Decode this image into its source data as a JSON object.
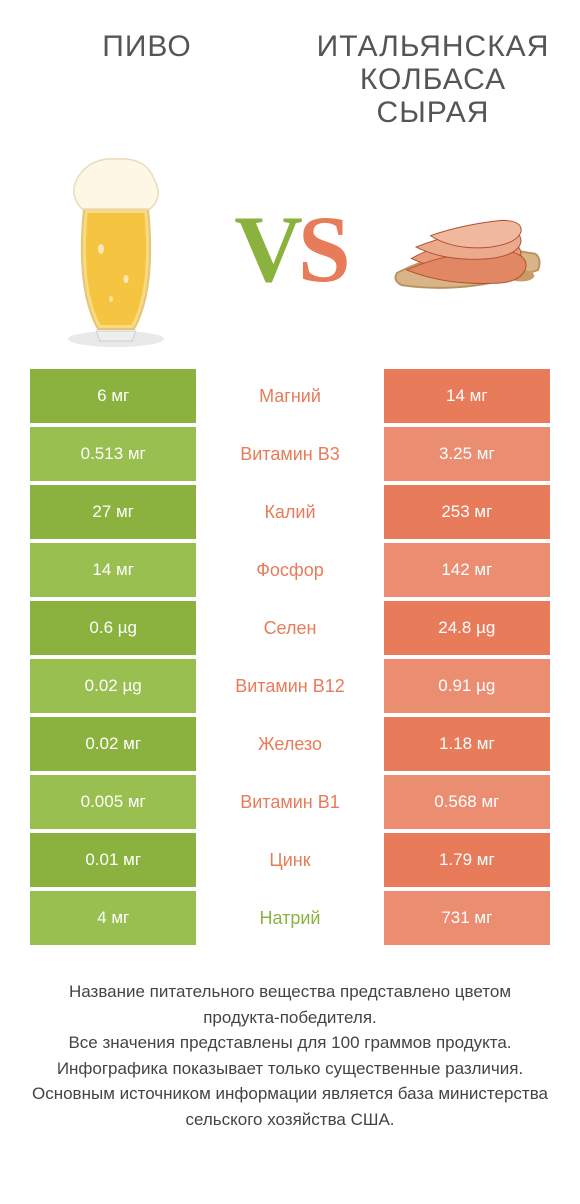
{
  "colors": {
    "left": "#8bb23e",
    "left_alt": "#99bf50",
    "right": "#e87b5a",
    "right_alt": "#eb8d70",
    "vs_v": "#8bb23e",
    "vs_s": "#e87b5a",
    "text": "#555555"
  },
  "products": {
    "left": {
      "title": "ПИВО"
    },
    "right": {
      "title": "ИТАЛЬЯНСКАЯ КОЛБАСА СЫРАЯ"
    }
  },
  "nutrients": [
    {
      "name": "Магний",
      "left": "6 мг",
      "right": "14 мг",
      "color": "right"
    },
    {
      "name": "Витамин B3",
      "left": "0.513 мг",
      "right": "3.25 мг",
      "color": "right"
    },
    {
      "name": "Калий",
      "left": "27 мг",
      "right": "253 мг",
      "color": "right"
    },
    {
      "name": "Фосфор",
      "left": "14 мг",
      "right": "142 мг",
      "color": "right"
    },
    {
      "name": "Селен",
      "left": "0.6 µg",
      "right": "24.8 µg",
      "color": "right"
    },
    {
      "name": "Витамин B12",
      "left": "0.02 µg",
      "right": "0.91 µg",
      "color": "right"
    },
    {
      "name": "Железо",
      "left": "0.02 мг",
      "right": "1.18 мг",
      "color": "right"
    },
    {
      "name": "Витамин B1",
      "left": "0.005 мг",
      "right": "0.568 мг",
      "color": "right"
    },
    {
      "name": "Цинк",
      "left": "0.01 мг",
      "right": "1.79 мг",
      "color": "right"
    },
    {
      "name": "Натрий",
      "left": "4 мг",
      "right": "731 мг",
      "color": "left"
    }
  ],
  "footer": {
    "line1": "Название питательного вещества представлено цветом продукта-победителя.",
    "line2": "Все значения представлены для 100 граммов продукта.",
    "line3": "Инфографика показывает только существенные различия.",
    "line4": "Основным источником информации является база министерства сельского хозяйства США."
  }
}
